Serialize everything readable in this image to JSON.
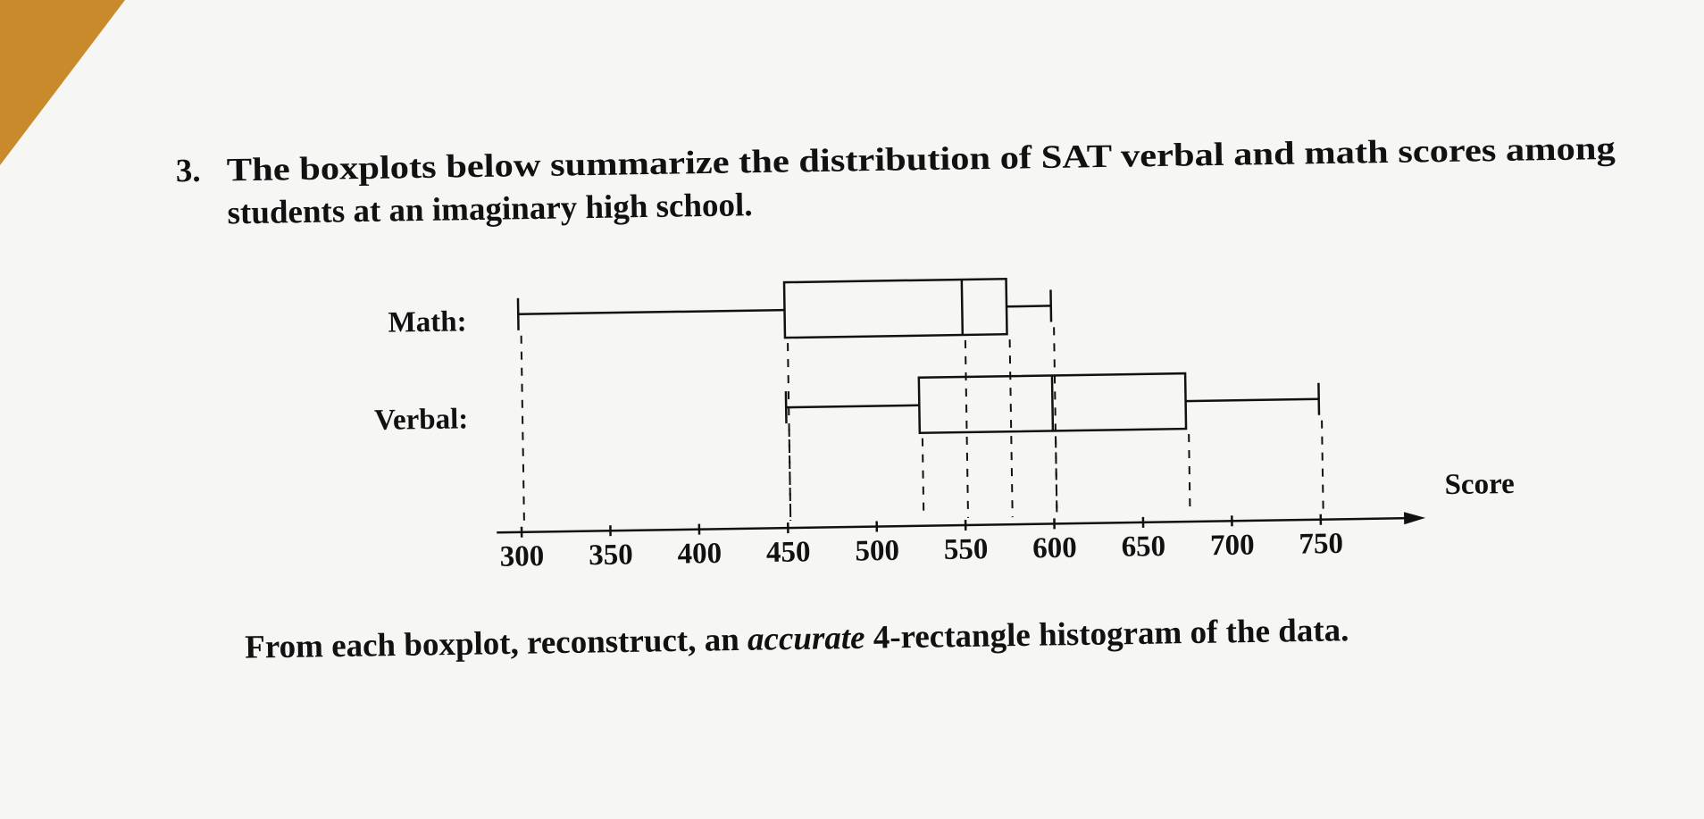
{
  "question": {
    "number": "3.",
    "line1": "The boxplots below summarize the distribution of SAT verbal and math scores among",
    "line2": "students at an imaginary high school.",
    "footer": [
      "From each boxplot, reconstruct, an ",
      "accurate",
      " 4-rectangle histogram of the data."
    ]
  },
  "chart_data": {
    "type": "boxplot",
    "x_label": "Score",
    "series": [
      {
        "name": "Math:",
        "min": 300,
        "q1": 450,
        "median": 550,
        "q3": 575,
        "max": 600
      },
      {
        "name": "Verbal:",
        "min": 450,
        "q1": 525,
        "median": 600,
        "q3": 675,
        "max": 750
      }
    ],
    "xlim": [
      286,
      809
    ],
    "xticks": [
      300,
      350,
      400,
      450,
      500,
      550,
      600,
      650,
      700,
      750
    ]
  }
}
